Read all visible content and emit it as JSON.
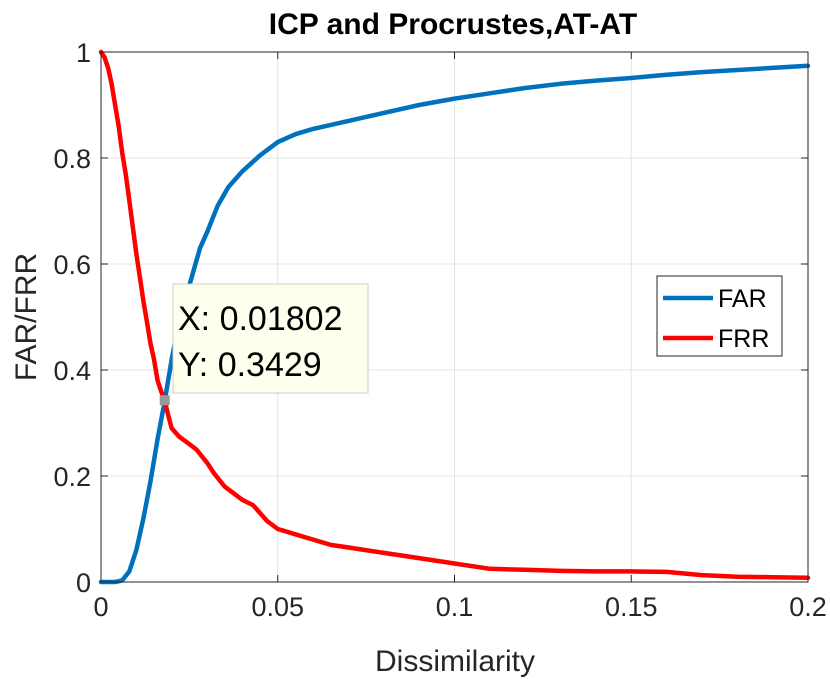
{
  "chart_data": {
    "type": "line",
    "title": "ICP and Procrustes,AT-AT",
    "xlabel": "Dissimilarity",
    "ylabel": "FAR/FRR",
    "xlim": [
      0,
      0.2
    ],
    "ylim": [
      0,
      1
    ],
    "xticks": [
      0,
      0.05,
      0.1,
      0.15,
      0.2
    ],
    "xtick_labels": [
      "0",
      "0.05",
      "0.1",
      "0.15",
      "0.2"
    ],
    "yticks": [
      0,
      0.2,
      0.4,
      0.6,
      0.8,
      1
    ],
    "ytick_labels": [
      "0",
      "0.2",
      "0.4",
      "0.6",
      "0.8",
      "1"
    ],
    "grid": true,
    "legend_position": "center-right",
    "series": [
      {
        "name": "FAR",
        "color": "#0072BD",
        "x": [
          0,
          0.004,
          0.006,
          0.008,
          0.01,
          0.012,
          0.014,
          0.016,
          0.018,
          0.02,
          0.022,
          0.025,
          0.028,
          0.03,
          0.033,
          0.036,
          0.04,
          0.045,
          0.05,
          0.055,
          0.06,
          0.07,
          0.08,
          0.09,
          0.1,
          0.11,
          0.12,
          0.13,
          0.14,
          0.15,
          0.16,
          0.17,
          0.18,
          0.19,
          0.2
        ],
        "values": [
          0.0,
          0.0,
          0.003,
          0.02,
          0.06,
          0.12,
          0.19,
          0.27,
          0.34,
          0.42,
          0.49,
          0.56,
          0.63,
          0.66,
          0.71,
          0.745,
          0.775,
          0.805,
          0.83,
          0.845,
          0.855,
          0.87,
          0.885,
          0.9,
          0.912,
          0.922,
          0.932,
          0.94,
          0.946,
          0.951,
          0.957,
          0.962,
          0.966,
          0.97,
          0.974
        ]
      },
      {
        "name": "FRR",
        "color": "#FF0000",
        "x": [
          0,
          0.001,
          0.002,
          0.003,
          0.004,
          0.005,
          0.006,
          0.007,
          0.008,
          0.009,
          0.01,
          0.011,
          0.012,
          0.013,
          0.014,
          0.015,
          0.016,
          0.017,
          0.018,
          0.019,
          0.02,
          0.022,
          0.025,
          0.027,
          0.03,
          0.032,
          0.035,
          0.038,
          0.04,
          0.043,
          0.045,
          0.047,
          0.05,
          0.055,
          0.06,
          0.065,
          0.07,
          0.08,
          0.09,
          0.1,
          0.11,
          0.12,
          0.13,
          0.14,
          0.15,
          0.16,
          0.165,
          0.17,
          0.18,
          0.19,
          0.2
        ],
        "values": [
          1.0,
          0.99,
          0.97,
          0.94,
          0.9,
          0.86,
          0.81,
          0.77,
          0.72,
          0.67,
          0.62,
          0.575,
          0.53,
          0.49,
          0.45,
          0.42,
          0.38,
          0.36,
          0.3429,
          0.315,
          0.29,
          0.275,
          0.26,
          0.25,
          0.225,
          0.205,
          0.18,
          0.165,
          0.155,
          0.145,
          0.13,
          0.115,
          0.1,
          0.09,
          0.08,
          0.07,
          0.065,
          0.055,
          0.045,
          0.035,
          0.025,
          0.023,
          0.021,
          0.02,
          0.02,
          0.019,
          0.016,
          0.013,
          0.01,
          0.009,
          0.008
        ]
      }
    ],
    "datatip": {
      "x": 0.01802,
      "y": 0.3429,
      "x_label": "X: 0.01802",
      "y_label": "Y: 0.3429"
    }
  }
}
